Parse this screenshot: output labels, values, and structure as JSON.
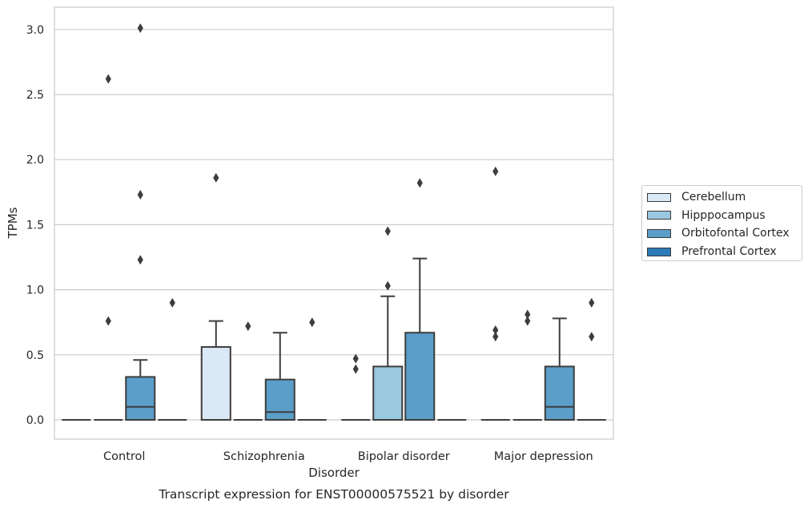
{
  "chart_data": {
    "type": "box",
    "title": "Transcript expression for ENST00000575521 by disorder",
    "xlabel": "Disorder",
    "ylabel": "TPMs",
    "ylim": [
      -0.15,
      3.17
    ],
    "yticks": [
      "0.0",
      "0.5",
      "1.0",
      "1.5",
      "2.0",
      "2.5",
      "3.0"
    ],
    "grid": "horizontal",
    "legend_position": "right",
    "categories": [
      "Control",
      "Schizophrenia",
      "Bipolar disorder",
      "Major depression"
    ],
    "series": [
      {
        "name": "Cerebellum",
        "color": "#dbe9f6",
        "boxes": [
          {
            "min": 0.0,
            "q1": 0.0,
            "median": 0.0,
            "q3": 0.0,
            "max": 0.0,
            "outliers": []
          },
          {
            "min": 0.0,
            "q1": 0.0,
            "median": 0.0,
            "q3": 0.56,
            "max": 0.76,
            "outliers": [
              1.86
            ]
          },
          {
            "min": 0.0,
            "q1": 0.0,
            "median": 0.0,
            "q3": 0.0,
            "max": 0.0,
            "outliers": [
              0.47,
              0.39
            ]
          },
          {
            "min": 0.0,
            "q1": 0.0,
            "median": 0.0,
            "q3": 0.0,
            "max": 0.0,
            "outliers": [
              1.91,
              0.69,
              0.64
            ]
          }
        ]
      },
      {
        "name": "Hipppocampus",
        "color": "#9ac8e0",
        "boxes": [
          {
            "min": 0.0,
            "q1": 0.0,
            "median": 0.0,
            "q3": 0.0,
            "max": 0.0,
            "outliers": [
              2.62,
              0.76
            ]
          },
          {
            "min": 0.0,
            "q1": 0.0,
            "median": 0.0,
            "q3": 0.0,
            "max": 0.0,
            "outliers": [
              0.72
            ]
          },
          {
            "min": 0.0,
            "q1": 0.0,
            "median": 0.0,
            "q3": 0.41,
            "max": 0.95,
            "outliers": [
              1.45,
              1.03
            ]
          },
          {
            "min": 0.0,
            "q1": 0.0,
            "median": 0.0,
            "q3": 0.0,
            "max": 0.0,
            "outliers": [
              0.81,
              0.76
            ]
          }
        ]
      },
      {
        "name": "Orbitofontal Cortex",
        "color": "#5a9ec9",
        "boxes": [
          {
            "min": 0.0,
            "q1": 0.0,
            "median": 0.1,
            "q3": 0.33,
            "max": 0.46,
            "outliers": [
              3.01,
              1.73,
              1.23
            ]
          },
          {
            "min": 0.0,
            "q1": 0.0,
            "median": 0.06,
            "q3": 0.31,
            "max": 0.67,
            "outliers": []
          },
          {
            "min": 0.0,
            "q1": 0.0,
            "median": 0.0,
            "q3": 0.67,
            "max": 1.24,
            "outliers": [
              1.82
            ]
          },
          {
            "min": 0.0,
            "q1": 0.0,
            "median": 0.1,
            "q3": 0.41,
            "max": 0.78,
            "outliers": []
          }
        ]
      },
      {
        "name": "Prefrontal Cortex",
        "color": "#2c7bb6",
        "boxes": [
          {
            "min": 0.0,
            "q1": 0.0,
            "median": 0.0,
            "q3": 0.0,
            "max": 0.0,
            "outliers": [
              0.9
            ]
          },
          {
            "min": 0.0,
            "q1": 0.0,
            "median": 0.0,
            "q3": 0.0,
            "max": 0.0,
            "outliers": [
              0.75
            ]
          },
          {
            "min": 0.0,
            "q1": 0.0,
            "median": 0.0,
            "q3": 0.0,
            "max": 0.0,
            "outliers": []
          },
          {
            "min": 0.0,
            "q1": 0.0,
            "median": 0.0,
            "q3": 0.0,
            "max": 0.0,
            "outliers": [
              0.9,
              0.64
            ]
          }
        ]
      }
    ]
  }
}
